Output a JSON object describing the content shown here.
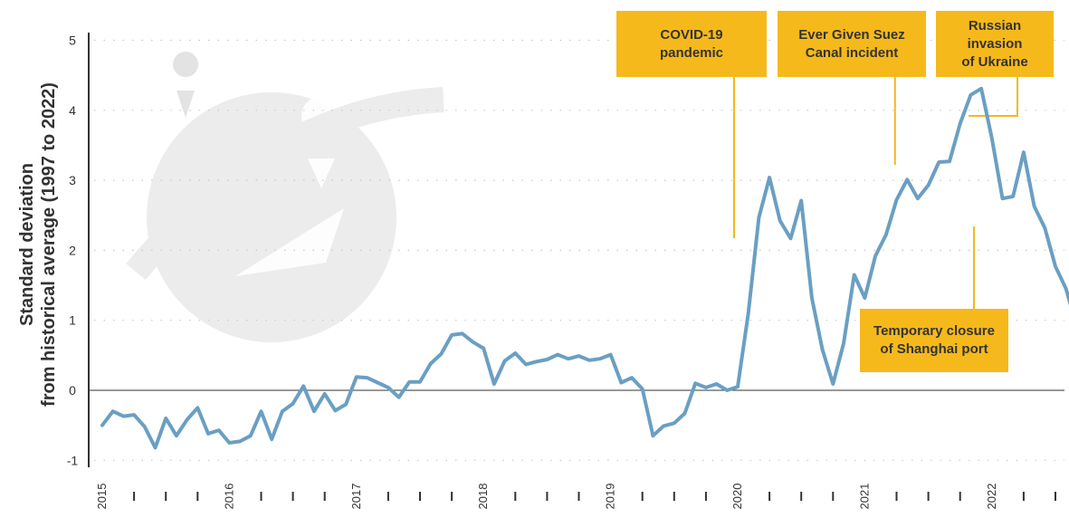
{
  "chart_data": {
    "type": "line",
    "ylabel_line1": "Standard deviation",
    "ylabel_line2": "from historical average  (1997 to 2022)",
    "ylim": [
      -1,
      5
    ],
    "yticks": [
      -1,
      0,
      1,
      2,
      3,
      4,
      5
    ],
    "grid": "horizontal dotted",
    "line_color": "#6a9fc3",
    "annotation_color": "#f6b91b",
    "year_labels": [
      "2015",
      "2016",
      "2017",
      "2018",
      "2019",
      "2020",
      "2021",
      "2022"
    ],
    "x_start": "2015-01",
    "frequency": "monthly",
    "series": [
      {
        "values": [
          -0.5,
          -0.3,
          -0.37,
          -0.35,
          -0.52,
          -0.82,
          -0.4,
          -0.65,
          -0.42,
          -0.25,
          -0.62,
          -0.57,
          -0.75,
          -0.73,
          -0.65,
          -0.3,
          -0.7,
          -0.3,
          -0.19,
          0.06,
          -0.3,
          -0.05,
          -0.29,
          -0.2,
          0.19,
          0.18,
          0.11,
          0.04,
          -0.1,
          0.12,
          0.12,
          0.38,
          0.52,
          0.79,
          0.81,
          0.69,
          0.6,
          0.09,
          0.42,
          0.53,
          0.37,
          0.41,
          0.44,
          0.51,
          0.45,
          0.49,
          0.43,
          0.45,
          0.51,
          0.11,
          0.18,
          0.02,
          -0.65,
          -0.51,
          -0.47,
          -0.33,
          0.1,
          0.04,
          0.09,
          0.0,
          0.05,
          1.1,
          2.47,
          3.04,
          2.42,
          2.17,
          2.71,
          1.32,
          0.58,
          0.09,
          0.67,
          1.65,
          1.32,
          1.92,
          2.22,
          2.72,
          3.01,
          2.74,
          2.93,
          3.26,
          3.27,
          3.81,
          4.22,
          4.31,
          3.6,
          2.74,
          2.77,
          3.4,
          2.63,
          2.32,
          1.77,
          1.45,
          0.92,
          1.02,
          1.14,
          1.19
        ]
      }
    ],
    "annotations": [
      {
        "lines": [
          "COVID-19",
          "pandemic"
        ],
        "x": "2020-01"
      },
      {
        "lines": [
          "Ever Given Suez",
          "Canal incident"
        ],
        "x": "2021-03"
      },
      {
        "lines": [
          "Russian invasion",
          "of Ukraine"
        ],
        "x": "2022-02"
      },
      {
        "lines": [
          "Temporary closure",
          "of Shanghai port"
        ],
        "x": "2022-04"
      }
    ]
  }
}
